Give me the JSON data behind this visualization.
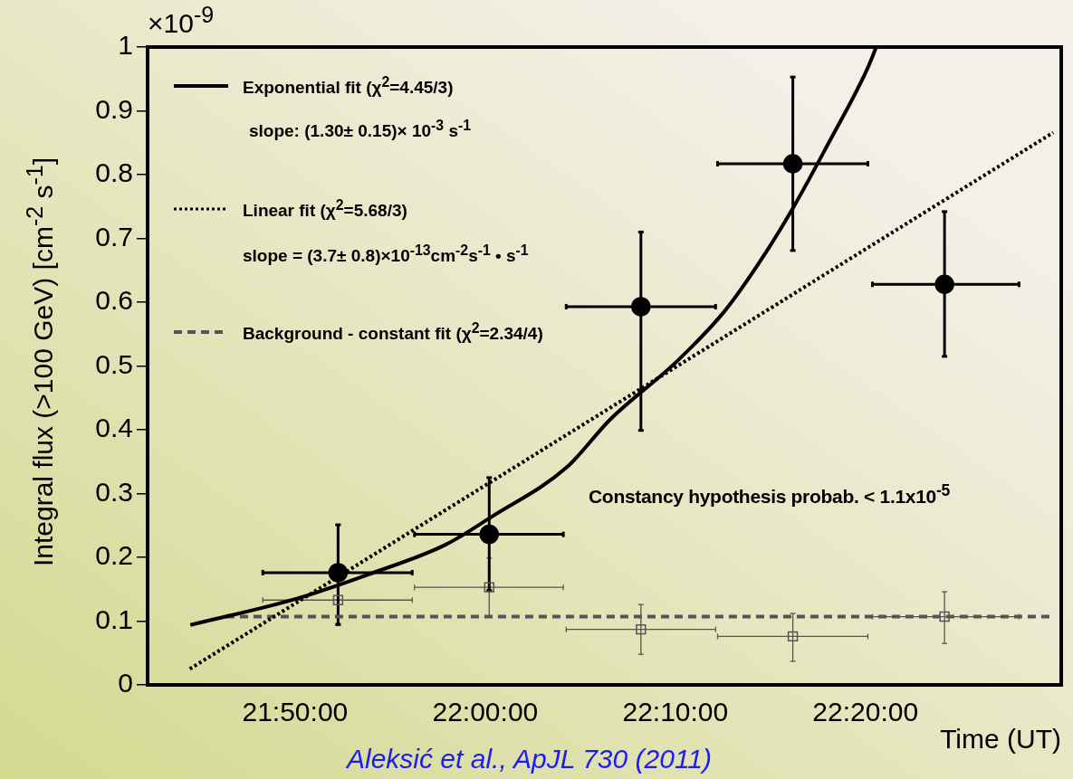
{
  "chart_data": {
    "type": "scatter",
    "xlabel": "Time (UT)",
    "ylabel": "Integral flux (>100 GeV) [cm$^{-2}$ s$^{-1}$]",
    "xlim": [
      21.704,
      22.505
    ],
    "xticks": [
      {
        "value": 21.8333,
        "label": "21:50:00"
      },
      {
        "value": 22.0,
        "label": "22:00:00"
      },
      {
        "value": 22.1667,
        "label": "22:10:00"
      },
      {
        "value": 22.3333,
        "label": "22:20:00"
      }
    ],
    "ylim": [
      0,
      1
    ],
    "yticks": [
      0,
      0.1,
      0.2,
      0.3,
      0.4,
      0.5,
      0.6,
      0.7,
      0.8,
      0.9,
      1
    ],
    "legend": "top left",
    "annotations": [
      "×10$^{-9}$",
      "slope: (1.30± 0.15)× 10$^{-3}$ s$^{-1}$",
      "slope = (3.7± 0.8)×10$^{-13}$cm$^{-2}$s$^{-1}$ • s$^{-1}$",
      "Constancy hypothesis probab. < 1.1x10$^{-5}$",
      "Aleksić et al., ApJL 730 (2011)"
    ],
    "series": [
      {
        "type": "scatter",
        "marker": "square",
        "color": "#555555",
        "x": [
          21.871,
          22.0035,
          22.1365,
          22.2697,
          22.4027
        ],
        "values": [
          0.133,
          0.153,
          0.087,
          0.076,
          0.107
        ],
        "errors": [
          [
            0.093,
            0.133
          ],
          [
            0.107,
            0.199
          ],
          [
            0.048,
            0.126
          ],
          [
            0.037,
            0.112
          ],
          [
            0.065,
            0.146
          ]
        ],
        "xerrors": [
          [
            21.805,
            21.936
          ],
          [
            21.938,
            22.0685
          ],
          [
            22.071,
            22.202
          ],
          [
            22.2037,
            22.3355
          ],
          [
            22.3395,
            22.468
          ]
        ]
      },
      {
        "type": "scatter",
        "marker": "circle",
        "color": "#000000",
        "x": [
          21.871,
          22.0035,
          22.1365,
          22.2697,
          22.4027
        ],
        "values": [
          0.176,
          0.236,
          0.593,
          0.817,
          0.628
        ],
        "errors": [
          [
            0.095,
            0.251
          ],
          [
            0.148,
            0.325
          ],
          [
            0.399,
            0.71
          ],
          [
            0.681,
            0.953
          ],
          [
            0.515,
            0.742
          ]
        ],
        "xerrors": [
          [
            21.805,
            21.936
          ],
          [
            21.938,
            22.0685
          ],
          [
            22.071,
            22.202
          ],
          [
            22.2037,
            22.3355
          ],
          [
            22.3395,
            22.468
          ]
        ]
      },
      {
        "type": "line",
        "name": "Exponential fit (χ$^{2}$=4.45/3)",
        "color": "#000000",
        "line_style": "solid",
        "marker": "none",
        "x": [
          21.7415,
          21.8341,
          21.8972,
          21.9655,
          22.0051,
          22.0714,
          22.1095,
          22.1685,
          22.2099,
          22.2395,
          22.269,
          22.3015,
          22.334,
          22.3429
        ],
        "values": [
          0.094,
          0.135,
          0.173,
          0.22,
          0.263,
          0.341,
          0.416,
          0.508,
          0.586,
          0.66,
          0.745,
          0.851,
          0.962,
          1.0
        ]
      },
      {
        "type": "line",
        "name": "Linear fit (χ$^{2}$=5.68/3)",
        "color": "#000000",
        "line_style": "dotted",
        "marker": "none",
        "x": [
          21.741,
          22.498
        ],
        "values": [
          0.025,
          0.866
        ]
      },
      {
        "type": "line",
        "name": "Background - constant fit (χ$^{2}$=2.34/4)",
        "color": "#555555",
        "line_style": "dashed",
        "marker": "none",
        "x": [
          21.773,
          22.4977
        ],
        "values": [
          0.107,
          0.107
        ]
      }
    ]
  }
}
